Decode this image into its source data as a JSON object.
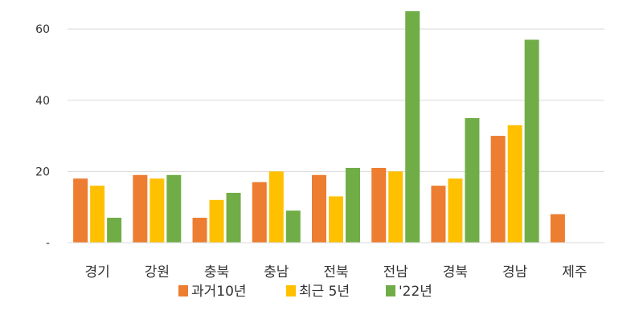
{
  "chart_data": {
    "type": "bar",
    "categories": [
      "경기",
      "강원",
      "충북",
      "충남",
      "전북",
      "전남",
      "경북",
      "경남",
      "제주"
    ],
    "series": [
      {
        "name": "과거10년",
        "color": "#ed7d31",
        "values": [
          18,
          19,
          7,
          17,
          19,
          21,
          16,
          30,
          8
        ]
      },
      {
        "name": "최근 5년",
        "color": "#ffc000",
        "values": [
          16,
          18,
          12,
          20,
          13,
          20,
          18,
          33,
          null
        ]
      },
      {
        "name": "'22년",
        "color": "#70ad47",
        "values": [
          7,
          19,
          14,
          9,
          21,
          65,
          35,
          57,
          null
        ]
      }
    ],
    "yticks": [
      {
        "value": 0,
        "label": "-"
      },
      {
        "value": 20,
        "label": "20"
      },
      {
        "value": 40,
        "label": "40"
      },
      {
        "value": 60,
        "label": "60"
      }
    ],
    "ylim": [
      0,
      65
    ],
    "grid": true,
    "legend_position": "bottom"
  }
}
